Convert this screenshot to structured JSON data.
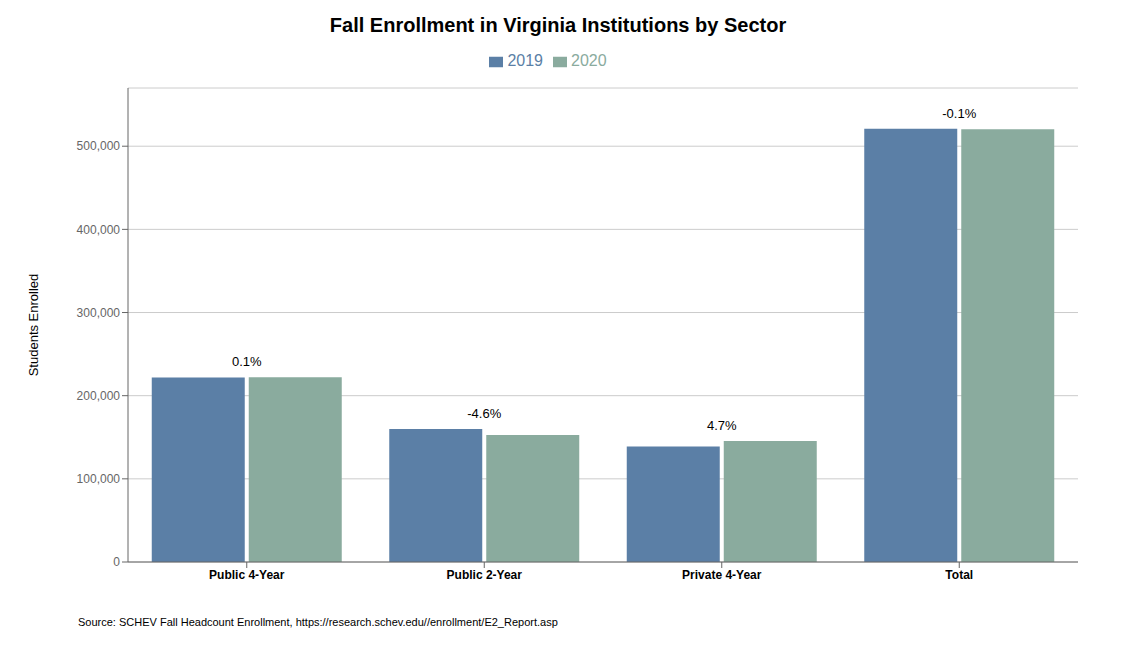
{
  "chart_data": {
    "type": "bar",
    "title": "Fall Enrollment in Virginia Institutions by Sector",
    "categories": [
      "Public 4-Year",
      "Public 2-Year",
      "Private 4-Year",
      "Total"
    ],
    "series": [
      {
        "name": "2019",
        "color": "#5b7fa6",
        "values": [
          222000,
          160000,
          139000,
          521000
        ]
      },
      {
        "name": "2020",
        "color": "#8aab9e",
        "values": [
          222200,
          152600,
          145500,
          520500
        ]
      }
    ],
    "ylabel": "Students Enrolled",
    "ylim": [
      0,
      570000
    ],
    "yticks": [
      0,
      {
        "value": 100000,
        "label": "100,000"
      },
      {
        "value": 200000,
        "label": "200,000"
      },
      {
        "value": 300000,
        "label": "300,000"
      },
      {
        "value": 400000,
        "label": "400,000"
      },
      {
        "value": 500000,
        "label": "500,000"
      }
    ],
    "annotations": [
      {
        "category": "Public 4-Year",
        "text": "0.1%"
      },
      {
        "category": "Public 2-Year",
        "text": "-4.6%"
      },
      {
        "category": "Private 4-Year",
        "text": "4.7%"
      },
      {
        "category": "Total",
        "text": "-0.1%"
      }
    ],
    "source": "Source: SCHEV Fall Headcount Enrollment, https://research.schev.edu//enrollment/E2_Report.asp",
    "grid": true,
    "legend": "top"
  }
}
